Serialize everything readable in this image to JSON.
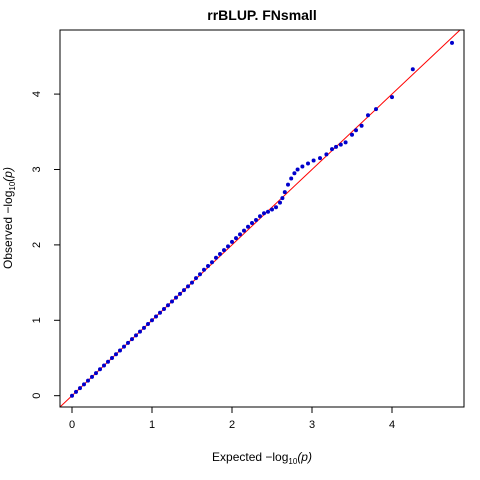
{
  "chart_data": {
    "type": "scatter",
    "title": "rrBLUP. FNsmall",
    "xlabel_prefix": "Expected  −log",
    "ylabel_prefix": "Observed  −log",
    "label_sub": "10",
    "label_arg": "(p)",
    "xlim": [
      -0.15,
      4.9
    ],
    "ylim": [
      -0.15,
      4.85
    ],
    "x_ticks": [
      "0",
      "1",
      "2",
      "3",
      "4"
    ],
    "y_ticks": [
      "0",
      "1",
      "2",
      "3",
      "4"
    ],
    "reference_line": {
      "slope": 1,
      "intercept": 0,
      "color": "#ff0000"
    },
    "point_color": "#0000cc",
    "line_color": "#ff0000",
    "series": [
      {
        "points": [
          [
            0.0,
            0.0
          ],
          [
            0.05,
            0.05
          ],
          [
            0.1,
            0.1
          ],
          [
            0.15,
            0.15
          ],
          [
            0.2,
            0.2
          ],
          [
            0.25,
            0.25
          ],
          [
            0.3,
            0.3
          ],
          [
            0.35,
            0.35
          ],
          [
            0.4,
            0.4
          ],
          [
            0.45,
            0.45
          ],
          [
            0.5,
            0.5
          ],
          [
            0.55,
            0.55
          ],
          [
            0.6,
            0.6
          ],
          [
            0.65,
            0.65
          ],
          [
            0.7,
            0.7
          ],
          [
            0.75,
            0.75
          ],
          [
            0.8,
            0.8
          ],
          [
            0.85,
            0.85
          ],
          [
            0.9,
            0.9
          ],
          [
            0.95,
            0.95
          ],
          [
            1.0,
            1.0
          ],
          [
            1.05,
            1.05
          ],
          [
            1.1,
            1.1
          ],
          [
            1.15,
            1.15
          ],
          [
            1.2,
            1.2
          ],
          [
            1.25,
            1.25
          ],
          [
            1.3,
            1.3
          ],
          [
            1.35,
            1.35
          ],
          [
            1.4,
            1.4
          ],
          [
            1.45,
            1.45
          ],
          [
            1.5,
            1.5
          ],
          [
            1.55,
            1.56
          ],
          [
            1.6,
            1.61
          ],
          [
            1.65,
            1.67
          ],
          [
            1.7,
            1.72
          ],
          [
            1.75,
            1.77
          ],
          [
            1.8,
            1.83
          ],
          [
            1.85,
            1.88
          ],
          [
            1.9,
            1.93
          ],
          [
            1.95,
            1.98
          ],
          [
            2.0,
            2.04
          ],
          [
            2.05,
            2.09
          ],
          [
            2.1,
            2.14
          ],
          [
            2.15,
            2.19
          ],
          [
            2.2,
            2.24
          ],
          [
            2.25,
            2.29
          ],
          [
            2.3,
            2.33
          ],
          [
            2.35,
            2.38
          ],
          [
            2.4,
            2.42
          ],
          [
            2.45,
            2.44
          ],
          [
            2.5,
            2.47
          ],
          [
            2.55,
            2.5
          ],
          [
            2.6,
            2.56
          ],
          [
            2.63,
            2.62
          ],
          [
            2.66,
            2.7
          ],
          [
            2.7,
            2.8
          ],
          [
            2.74,
            2.88
          ],
          [
            2.78,
            2.95
          ],
          [
            2.82,
            3.0
          ],
          [
            2.88,
            3.04
          ],
          [
            2.95,
            3.08
          ],
          [
            3.02,
            3.12
          ],
          [
            3.1,
            3.15
          ],
          [
            3.18,
            3.2
          ],
          [
            3.25,
            3.27
          ],
          [
            3.3,
            3.3
          ],
          [
            3.36,
            3.33
          ],
          [
            3.42,
            3.36
          ],
          [
            3.5,
            3.46
          ],
          [
            3.55,
            3.52
          ],
          [
            3.62,
            3.58
          ],
          [
            3.7,
            3.72
          ],
          [
            3.8,
            3.8
          ],
          [
            4.0,
            3.96
          ],
          [
            4.26,
            4.33
          ],
          [
            4.75,
            4.68
          ]
        ]
      }
    ]
  }
}
